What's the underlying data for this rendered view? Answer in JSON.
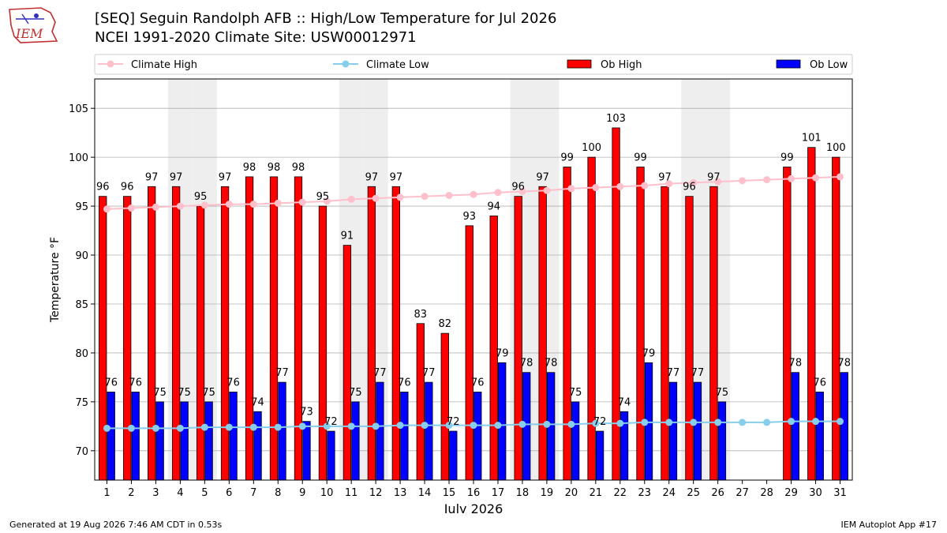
{
  "header": {
    "title_line1": "[SEQ] Seguin Randolph AFB :: High/Low Temperature for Jul 2026",
    "title_line2": "NCEI 1991-2020 Climate Site: USW00012971",
    "logo_text": "IEM"
  },
  "footer": {
    "left": "Generated at 19 Aug 2026 7:46 AM CDT in 0.53s",
    "right": "IEM Autoplot App #17"
  },
  "colors": {
    "ob_high": "#ff0000",
    "ob_low": "#0000ff",
    "climate_high": "#ffc0cb",
    "climate_low": "#87ceeb",
    "weekend_shade": "#eeeeee",
    "grid": "#b0b0b0"
  },
  "chart_data": {
    "type": "bar",
    "title": "[SEQ] Seguin Randolph AFB :: High/Low Temperature for Jul 2026",
    "xlabel": "July 2026",
    "ylabel": "Temperature °F",
    "ylim": [
      67,
      108
    ],
    "yticks": [
      70,
      75,
      80,
      85,
      90,
      95,
      100,
      105
    ],
    "grid": true,
    "legend_position": "top",
    "categories": [
      "1",
      "2",
      "3",
      "4",
      "5",
      "6",
      "7",
      "8",
      "9",
      "10",
      "11",
      "12",
      "13",
      "14",
      "15",
      "16",
      "17",
      "18",
      "19",
      "20",
      "21",
      "22",
      "23",
      "24",
      "25",
      "26",
      "27",
      "28",
      "29",
      "30",
      "31"
    ],
    "shaded_days": [
      4,
      5,
      11,
      12,
      18,
      19,
      25,
      26
    ],
    "series": [
      {
        "name": "Climate High",
        "kind": "line",
        "values": [
          94.7,
          94.8,
          94.9,
          95.0,
          95.1,
          95.2,
          95.2,
          95.3,
          95.4,
          95.5,
          95.7,
          95.8,
          95.9,
          96.0,
          96.1,
          96.2,
          96.4,
          96.5,
          96.6,
          96.8,
          96.9,
          97.0,
          97.1,
          97.3,
          97.4,
          97.5,
          97.6,
          97.7,
          97.8,
          97.9,
          98.0
        ]
      },
      {
        "name": "Climate Low",
        "kind": "line",
        "values": [
          72.3,
          72.3,
          72.3,
          72.3,
          72.4,
          72.4,
          72.4,
          72.4,
          72.5,
          72.5,
          72.5,
          72.5,
          72.6,
          72.6,
          72.6,
          72.6,
          72.6,
          72.7,
          72.7,
          72.7,
          72.8,
          72.8,
          72.9,
          72.9,
          72.9,
          72.9,
          72.9,
          72.9,
          73.0,
          73.0,
          73.0
        ]
      },
      {
        "name": "Ob High",
        "kind": "bar",
        "values": [
          96,
          96,
          97,
          97,
          95,
          97,
          98,
          98,
          98,
          95,
          91,
          97,
          97,
          83,
          82,
          93,
          94,
          96,
          97,
          99,
          100,
          103,
          99,
          97,
          96,
          97,
          null,
          null,
          99,
          101,
          100
        ]
      },
      {
        "name": "Ob Low",
        "kind": "bar",
        "values": [
          76,
          76,
          75,
          75,
          75,
          76,
          74,
          77,
          73,
          72,
          75,
          77,
          76,
          77,
          72,
          76,
          79,
          78,
          78,
          75,
          72,
          74,
          79,
          77,
          77,
          75,
          null,
          null,
          78,
          76,
          78
        ]
      }
    ]
  }
}
